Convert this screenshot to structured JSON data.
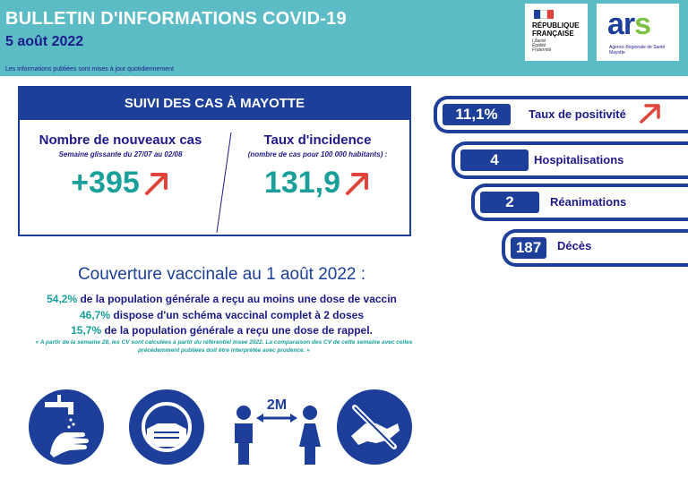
{
  "header": {
    "title": "BULLETIN D'INFORMATIONS COVID-19",
    "date": "5 août 2022",
    "note": "Les informations publiées sont mises à jour quotidiennement"
  },
  "logos": {
    "rf_name": "RÉPUBLIQUE\nFRANÇAISE",
    "rf_motto": "Liberté\nÉgalité\nFraternité",
    "ars_word": "ars",
    "ars_sub": "Agence Régionale de Santé Mayotte"
  },
  "cases_card": {
    "title": "SUIVI DES CAS À MAYOTTE",
    "new_cases_title": "Nombre de nouveaux cas",
    "new_cases_sub": "Semaine glissante du 27/07 au 02/08",
    "new_cases_value": "+395",
    "new_cases_trend": "up",
    "incidence_title": "Taux d'incidence",
    "incidence_sub": "(nombre de cas pour 100 000 habitants) :",
    "incidence_value": "131,9",
    "incidence_trend": "up"
  },
  "indicators": [
    {
      "value": "11,1%",
      "label": "Taux de positivité",
      "trend": "up"
    },
    {
      "value": "4",
      "label": "Hospitalisations"
    },
    {
      "value": "2",
      "label": "Réanimations"
    },
    {
      "value": "187",
      "label": "Décès"
    }
  ],
  "vaccination": {
    "title": "Couverture vaccinale au 1 août 2022 :",
    "lines": [
      {
        "pct": "54,2%",
        "text": " de la population générale a reçu au moins une dose de vaccin"
      },
      {
        "pct": "46,7%",
        "text": " dispose d'un schéma vaccinal complet à 2 doses"
      },
      {
        "pct": "15,7%",
        "text": " de la population générale a reçu une dose de rappel."
      }
    ],
    "note": "« A partir de la semaine 28, les CV sont calculées à partir du référentiel Insee 2022. La comparaison des CV de cette semaine avec celles précédemment publiées doit être interprétée avec prudence. »"
  },
  "gestures": {
    "distance_label": "2M",
    "icons": [
      "handwashing-icon",
      "face-mask-icon",
      "distance-icon",
      "no-handshake-icon"
    ]
  },
  "colors": {
    "header_bg": "#5bbcc5",
    "navy": "#1d3f9a",
    "teal": "#1aa09a",
    "trend_arrow": "#e0443a"
  }
}
